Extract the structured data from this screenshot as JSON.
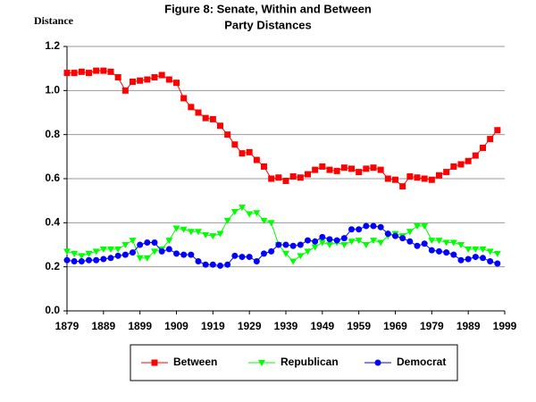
{
  "chart_data": {
    "type": "line",
    "title": [
      "Figure 8: Senate, Within and Between",
      "Party Distances"
    ],
    "y_label": "Distance",
    "x": [
      1879,
      1881,
      1883,
      1885,
      1887,
      1889,
      1891,
      1893,
      1895,
      1897,
      1899,
      1901,
      1903,
      1905,
      1907,
      1909,
      1911,
      1913,
      1915,
      1917,
      1919,
      1921,
      1923,
      1925,
      1927,
      1929,
      1931,
      1933,
      1935,
      1937,
      1939,
      1941,
      1943,
      1945,
      1947,
      1949,
      1951,
      1953,
      1955,
      1957,
      1959,
      1961,
      1963,
      1965,
      1967,
      1969,
      1971,
      1973,
      1975,
      1977,
      1979,
      1981,
      1983,
      1985,
      1987,
      1989,
      1991,
      1993,
      1995,
      1997
    ],
    "series": [
      {
        "name": "Between",
        "color": "#ff0000",
        "marker": "square",
        "values": [
          1.08,
          1.08,
          1.085,
          1.08,
          1.09,
          1.09,
          1.085,
          1.06,
          1.0,
          1.04,
          1.045,
          1.05,
          1.06,
          1.07,
          1.05,
          1.035,
          0.965,
          0.925,
          0.9,
          0.875,
          0.87,
          0.84,
          0.8,
          0.755,
          0.715,
          0.72,
          0.685,
          0.655,
          0.6,
          0.605,
          0.59,
          0.61,
          0.605,
          0.62,
          0.64,
          0.655,
          0.64,
          0.635,
          0.65,
          0.645,
          0.63,
          0.645,
          0.65,
          0.64,
          0.6,
          0.595,
          0.565,
          0.61,
          0.605,
          0.6,
          0.595,
          0.615,
          0.63,
          0.655,
          0.665,
          0.68,
          0.705,
          0.74,
          0.78,
          0.82
        ]
      },
      {
        "name": "Republican",
        "color": "#00ff00",
        "marker": "triangle-down",
        "values": [
          0.27,
          0.26,
          0.25,
          0.26,
          0.27,
          0.28,
          0.28,
          0.28,
          0.3,
          0.32,
          0.24,
          0.24,
          0.27,
          0.28,
          0.32,
          0.375,
          0.37,
          0.36,
          0.36,
          0.345,
          0.34,
          0.35,
          0.41,
          0.45,
          0.47,
          0.44,
          0.445,
          0.41,
          0.4,
          0.3,
          0.26,
          0.225,
          0.25,
          0.27,
          0.29,
          0.31,
          0.3,
          0.31,
          0.3,
          0.315,
          0.32,
          0.3,
          0.32,
          0.31,
          0.34,
          0.35,
          0.34,
          0.36,
          0.385,
          0.385,
          0.32,
          0.32,
          0.31,
          0.31,
          0.3,
          0.28,
          0.28,
          0.28,
          0.27,
          0.26
        ]
      },
      {
        "name": "Democrat",
        "color": "#0000ff",
        "marker": "circle",
        "values": [
          0.23,
          0.225,
          0.225,
          0.23,
          0.23,
          0.235,
          0.24,
          0.25,
          0.255,
          0.265,
          0.3,
          0.31,
          0.31,
          0.27,
          0.28,
          0.26,
          0.255,
          0.255,
          0.225,
          0.21,
          0.21,
          0.205,
          0.21,
          0.25,
          0.245,
          0.245,
          0.225,
          0.26,
          0.27,
          0.3,
          0.3,
          0.295,
          0.3,
          0.32,
          0.315,
          0.335,
          0.325,
          0.32,
          0.33,
          0.37,
          0.37,
          0.385,
          0.385,
          0.38,
          0.35,
          0.34,
          0.33,
          0.315,
          0.295,
          0.305,
          0.275,
          0.27,
          0.265,
          0.255,
          0.23,
          0.235,
          0.245,
          0.24,
          0.225,
          0.215
        ]
      }
    ],
    "xlim": [
      1879,
      1999
    ],
    "xticks": [
      1879,
      1889,
      1899,
      1909,
      1919,
      1929,
      1939,
      1949,
      1959,
      1969,
      1979,
      1989,
      1999
    ],
    "ylim": [
      0,
      1.2
    ],
    "yticks": [
      {
        "value": 0,
        "label": "0.0"
      },
      0.2,
      0.4,
      0.6,
      0.8,
      {
        "value": 1,
        "label": "1.0"
      },
      1.2
    ],
    "grid": true,
    "legend": "bottom"
  }
}
